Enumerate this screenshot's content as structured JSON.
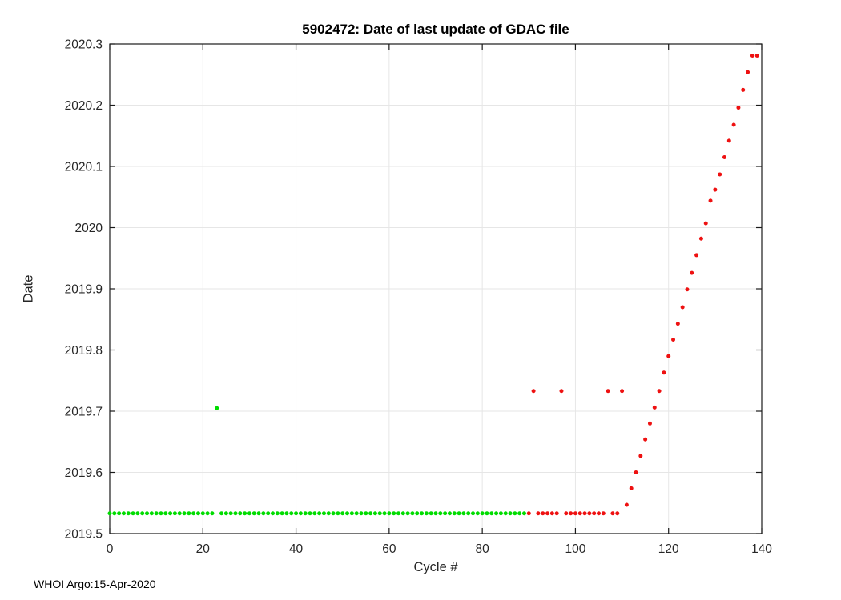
{
  "footer": {
    "text": "WHOI Argo:15-Apr-2020"
  },
  "chart_data": {
    "type": "scatter",
    "title": "5902472: Date of last update of GDAC file",
    "xlabel": "Cycle #",
    "ylabel": "Date",
    "xlim": [
      0,
      140
    ],
    "ylim": [
      2019.5,
      2020.3
    ],
    "xticks": [
      0,
      20,
      40,
      60,
      80,
      100,
      120,
      140
    ],
    "xtick_labels": [
      "0",
      "20",
      "40",
      "60",
      "80",
      "100",
      "120",
      "140"
    ],
    "yticks": [
      2019.5,
      2019.6,
      2019.7,
      2019.8,
      2019.9,
      2020,
      2020.1,
      2020.2,
      2020.3
    ],
    "ytick_labels": [
      "2019.5",
      "2019.6",
      "2019.7",
      "2019.8",
      "2019.9",
      "2020",
      "2020.1",
      "2020.2",
      "2020.3"
    ],
    "grid": true,
    "legend": false,
    "colors": {
      "green_marker": "#00DC00",
      "red_marker": "#EE1111",
      "grid_line": "#E6E6E6",
      "axis_line": "#1A1A1A",
      "tick_text": "#262626"
    },
    "series": [
      {
        "name": "green",
        "color_key": "green_marker",
        "points": [
          [
            0,
            2019.533
          ],
          [
            1,
            2019.533
          ],
          [
            2,
            2019.533
          ],
          [
            3,
            2019.533
          ],
          [
            4,
            2019.533
          ],
          [
            5,
            2019.533
          ],
          [
            6,
            2019.533
          ],
          [
            7,
            2019.533
          ],
          [
            8,
            2019.533
          ],
          [
            9,
            2019.533
          ],
          [
            10,
            2019.533
          ],
          [
            11,
            2019.533
          ],
          [
            12,
            2019.533
          ],
          [
            13,
            2019.533
          ],
          [
            14,
            2019.533
          ],
          [
            15,
            2019.533
          ],
          [
            16,
            2019.533
          ],
          [
            17,
            2019.533
          ],
          [
            18,
            2019.533
          ],
          [
            19,
            2019.533
          ],
          [
            20,
            2019.533
          ],
          [
            21,
            2019.533
          ],
          [
            22,
            2019.533
          ],
          [
            23,
            2019.705
          ],
          [
            24,
            2019.533
          ],
          [
            25,
            2019.533
          ],
          [
            26,
            2019.533
          ],
          [
            27,
            2019.533
          ],
          [
            28,
            2019.533
          ],
          [
            29,
            2019.533
          ],
          [
            30,
            2019.533
          ],
          [
            31,
            2019.533
          ],
          [
            32,
            2019.533
          ],
          [
            33,
            2019.533
          ],
          [
            34,
            2019.533
          ],
          [
            35,
            2019.533
          ],
          [
            36,
            2019.533
          ],
          [
            37,
            2019.533
          ],
          [
            38,
            2019.533
          ],
          [
            39,
            2019.533
          ],
          [
            40,
            2019.533
          ],
          [
            41,
            2019.533
          ],
          [
            42,
            2019.533
          ],
          [
            43,
            2019.533
          ],
          [
            44,
            2019.533
          ],
          [
            45,
            2019.533
          ],
          [
            46,
            2019.533
          ],
          [
            47,
            2019.533
          ],
          [
            48,
            2019.533
          ],
          [
            49,
            2019.533
          ],
          [
            50,
            2019.533
          ],
          [
            51,
            2019.533
          ],
          [
            52,
            2019.533
          ],
          [
            53,
            2019.533
          ],
          [
            54,
            2019.533
          ],
          [
            55,
            2019.533
          ],
          [
            56,
            2019.533
          ],
          [
            57,
            2019.533
          ],
          [
            58,
            2019.533
          ],
          [
            59,
            2019.533
          ],
          [
            60,
            2019.533
          ],
          [
            61,
            2019.533
          ],
          [
            62,
            2019.533
          ],
          [
            63,
            2019.533
          ],
          [
            64,
            2019.533
          ],
          [
            65,
            2019.533
          ],
          [
            66,
            2019.533
          ],
          [
            67,
            2019.533
          ],
          [
            68,
            2019.533
          ],
          [
            69,
            2019.533
          ],
          [
            70,
            2019.533
          ],
          [
            71,
            2019.533
          ],
          [
            72,
            2019.533
          ],
          [
            73,
            2019.533
          ],
          [
            74,
            2019.533
          ],
          [
            75,
            2019.533
          ],
          [
            76,
            2019.533
          ],
          [
            77,
            2019.533
          ],
          [
            78,
            2019.533
          ],
          [
            79,
            2019.533
          ],
          [
            80,
            2019.533
          ],
          [
            81,
            2019.533
          ],
          [
            82,
            2019.533
          ],
          [
            83,
            2019.533
          ],
          [
            84,
            2019.533
          ],
          [
            85,
            2019.533
          ],
          [
            86,
            2019.533
          ],
          [
            87,
            2019.533
          ],
          [
            88,
            2019.533
          ],
          [
            89,
            2019.533
          ]
        ]
      },
      {
        "name": "red",
        "color_key": "red_marker",
        "points": [
          [
            90,
            2019.533
          ],
          [
            91,
            2019.733
          ],
          [
            92,
            2019.533
          ],
          [
            93,
            2019.533
          ],
          [
            94,
            2019.533
          ],
          [
            95,
            2019.533
          ],
          [
            96,
            2019.533
          ],
          [
            97,
            2019.733
          ],
          [
            98,
            2019.533
          ],
          [
            99,
            2019.533
          ],
          [
            100,
            2019.533
          ],
          [
            101,
            2019.533
          ],
          [
            102,
            2019.533
          ],
          [
            103,
            2019.533
          ],
          [
            104,
            2019.533
          ],
          [
            105,
            2019.533
          ],
          [
            106,
            2019.533
          ],
          [
            107,
            2019.733
          ],
          [
            108,
            2019.533
          ],
          [
            109,
            2019.533
          ],
          [
            110,
            2019.733
          ],
          [
            111,
            2019.547
          ],
          [
            112,
            2019.574
          ],
          [
            113,
            2019.6
          ],
          [
            114,
            2019.627
          ],
          [
            115,
            2019.654
          ],
          [
            116,
            2019.68
          ],
          [
            117,
            2019.706
          ],
          [
            118,
            2019.733
          ],
          [
            119,
            2019.763
          ],
          [
            120,
            2019.79
          ],
          [
            121,
            2019.817
          ],
          [
            122,
            2019.843
          ],
          [
            123,
            2019.87
          ],
          [
            124,
            2019.899
          ],
          [
            125,
            2019.926
          ],
          [
            126,
            2019.955
          ],
          [
            127,
            2019.982
          ],
          [
            128,
            2020.007
          ],
          [
            129,
            2020.044
          ],
          [
            130,
            2020.062
          ],
          [
            131,
            2020.087
          ],
          [
            132,
            2020.115
          ],
          [
            133,
            2020.142
          ],
          [
            134,
            2020.168
          ],
          [
            135,
            2020.196
          ],
          [
            136,
            2020.225
          ],
          [
            137,
            2020.254
          ],
          [
            138,
            2020.281
          ],
          [
            139,
            2020.281
          ]
        ]
      }
    ]
  }
}
